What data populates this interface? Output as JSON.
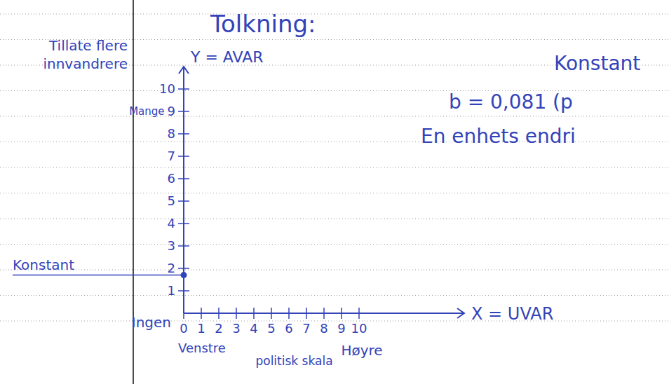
{
  "chart_data": {
    "type": "scatter",
    "title": "Tolkning:",
    "x_label": "X = UVAR",
    "y_label": "Y = AVAR",
    "y_note": "Tillate flere innvandrere",
    "y_high_label": "Mange",
    "y_low_label": "Ingen",
    "x_low_label": "Venstre",
    "x_mid_label": "politisk skala",
    "x_high_label": "Høyre",
    "point_label": "Konstant",
    "notes": [
      "Konstant",
      "b = 0,081 (p",
      "En enhets endri"
    ],
    "x": [
      0
    ],
    "values": [
      1.7
    ],
    "color": "#3343b8",
    "marker": "circle",
    "xlim": [
      0,
      16
    ],
    "ylim": [
      0,
      11
    ],
    "xticks": [
      0,
      1,
      2,
      3,
      4,
      5,
      6,
      7,
      8,
      9,
      10
    ],
    "yticks": [
      1,
      2,
      3,
      4,
      5,
      6,
      7,
      8,
      9,
      10
    ],
    "grid": false
  }
}
